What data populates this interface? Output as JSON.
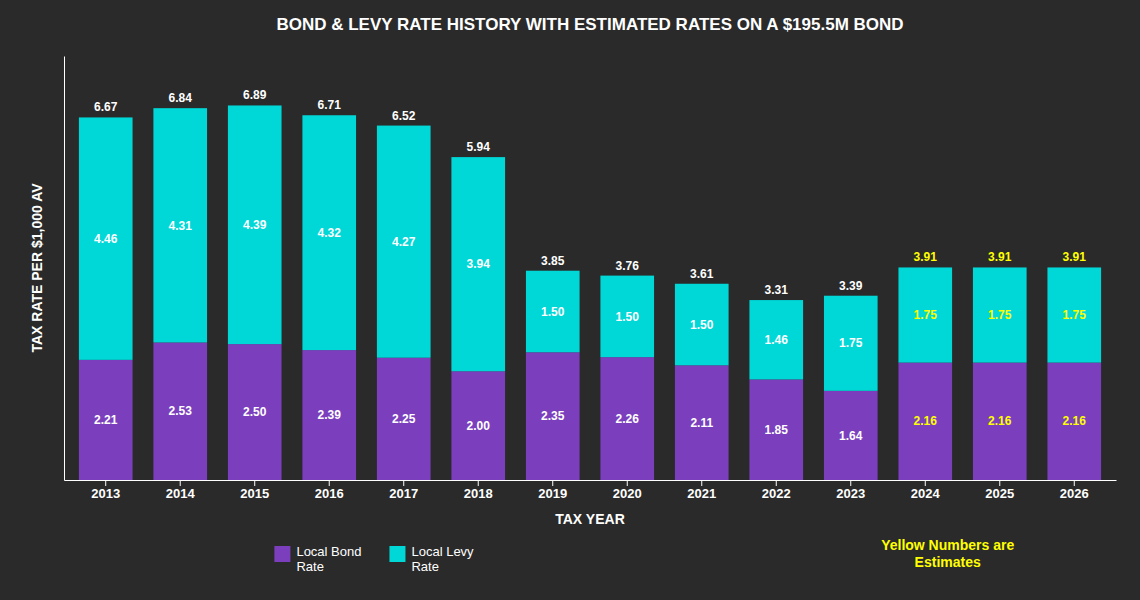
{
  "chart_data": {
    "type": "bar",
    "stacked": true,
    "title": "BOND & LEVY RATE HISTORY WITH ESTIMATED RATES ON A $195.5M BOND",
    "xlabel": "TAX YEAR",
    "ylabel": "TAX RATE PER $1,000 AV",
    "categories": [
      "2013",
      "2014",
      "2015",
      "2016",
      "2017",
      "2018",
      "2019",
      "2020",
      "2021",
      "2022",
      "2023",
      "2024",
      "2025",
      "2026"
    ],
    "series": [
      {
        "name": "Local Bond\nRate",
        "color": "#7B3FBE",
        "values": [
          2.21,
          2.53,
          2.5,
          2.39,
          2.25,
          2.0,
          2.35,
          2.26,
          2.11,
          1.85,
          1.64,
          2.16,
          2.16,
          2.16
        ],
        "value_labels": [
          "2.21",
          "2.53",
          "2.50",
          "2.39",
          "2.25",
          "2.00",
          "2.35",
          "2.26",
          "2.11",
          "1.85",
          "1.64",
          "2.16",
          "2.16",
          "2.16"
        ]
      },
      {
        "name": "Local Levy\nRate",
        "color": "#00D8D8",
        "values": [
          4.46,
          4.31,
          4.39,
          4.32,
          4.27,
          3.94,
          1.5,
          1.5,
          1.5,
          1.46,
          1.75,
          1.75,
          1.75,
          1.75
        ],
        "value_labels": [
          "4.46",
          "4.31",
          "4.39",
          "4.32",
          "4.27",
          "3.94",
          "1.50",
          "1.50",
          "1.50",
          "1.46",
          "1.75",
          "1.75",
          "1.75",
          "1.75"
        ]
      }
    ],
    "totals": [
      6.67,
      6.84,
      6.89,
      6.71,
      6.52,
      5.94,
      3.85,
      3.76,
      3.61,
      3.31,
      3.39,
      3.91,
      3.91,
      3.91
    ],
    "total_labels": [
      "6.67",
      "6.84",
      "6.89",
      "6.71",
      "6.52",
      "5.94",
      "3.85",
      "3.76",
      "3.61",
      "3.31",
      "3.39",
      "3.91",
      "3.91",
      "3.91"
    ],
    "label_colors": [
      "#ffffff",
      "#ffffff",
      "#ffffff",
      "#ffffff",
      "#ffffff",
      "#ffffff",
      "#ffffff",
      "#ffffff",
      "#ffffff",
      "#ffffff",
      "#ffffff",
      "#FFFF00",
      "#FFFF00",
      "#FFFF00"
    ],
    "ylim": [
      0,
      7.8
    ],
    "yticks": [],
    "grid": false,
    "legend": "bottom",
    "data_labels": true,
    "tick_labels": "x",
    "annotations": [
      {
        "text": "Yellow Numbers are\nEstimates",
        "color": "#FFFF00"
      }
    ]
  }
}
